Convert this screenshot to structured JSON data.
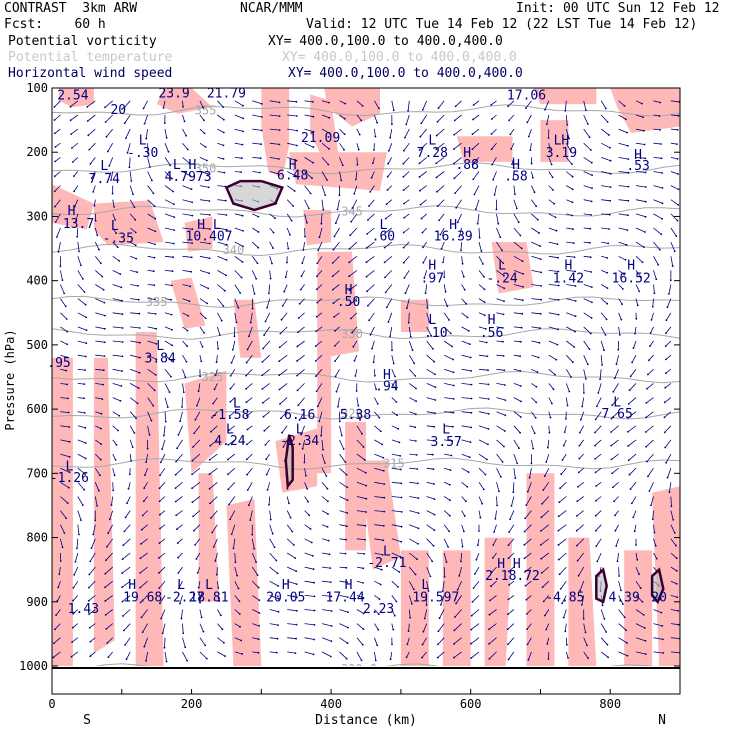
{
  "header": {
    "model": "CONTRAST  3km ARW",
    "org": "NCAR/MMM",
    "init": "Init: 00 UTC Sun 12 Feb 12",
    "fcst": "Fcst:    60 h",
    "valid": "Valid: 12 UTC Tue 14 Feb 12 (22 LST Tue 14 Feb 12)",
    "fields": [
      {
        "name": "Potential vorticity",
        "xy": "XY= 400.0,100.0 to 400.0,400.0",
        "color": "#000000"
      },
      {
        "name": "Potential temperature",
        "xy": "XY= 400.0,100.0 to 400.0,400.0",
        "color": "#c8c8c8"
      },
      {
        "name": "Horizontal wind speed",
        "xy": "XY= 400.0,100.0 to 400.0,400.0",
        "color": "#000060"
      }
    ]
  },
  "colors": {
    "pv_fill": "#ffb8b8",
    "pv_high": "#3a0030",
    "theta": "#a8a8a8",
    "wind_label": "#000080",
    "wind_vector": "#000080",
    "axis": "#000000"
  },
  "chart_data": {
    "type": "cross-section",
    "xlabel": "Distance (km)",
    "ylabel": "Pressure (hPa)",
    "xlim": [
      0,
      900
    ],
    "ylim": [
      1000,
      100
    ],
    "x_ticks": [
      0,
      200,
      400,
      600,
      800
    ],
    "y_ticks": [
      100,
      200,
      300,
      400,
      500,
      600,
      700,
      800,
      900,
      1000
    ],
    "x_end_labels": {
      "left": "S",
      "right": "N"
    },
    "theta_contours": [
      {
        "label": "355",
        "x": 220,
        "p": 135
      },
      {
        "label": "350",
        "x": 220,
        "p": 225
      },
      {
        "label": "345",
        "x": 430,
        "p": 292
      },
      {
        "label": "340",
        "x": 260,
        "p": 352
      },
      {
        "label": "335",
        "x": 150,
        "p": 433
      },
      {
        "label": "330",
        "x": 430,
        "p": 483
      },
      {
        "label": "325",
        "x": 230,
        "p": 550
      },
      {
        "label": "320",
        "x": 430,
        "p": 607
      },
      {
        "label": "315",
        "x": 490,
        "p": 685
      },
      {
        "label": "300.0",
        "x": 440,
        "p": 1005
      }
    ],
    "wind_labels": [
      {
        "text": "2.54",
        "x": 30,
        "p": 110
      },
      {
        "text": "20",
        "x": 95,
        "p": 133
      },
      {
        "text": "23.9",
        "x": 175,
        "p": 107
      },
      {
        "text": "21.79",
        "x": 250,
        "p": 107
      },
      {
        "text": "17.06",
        "x": 680,
        "p": 110
      },
      {
        "text": "21.09",
        "x": 385,
        "p": 176
      },
      {
        "text": "L",
        "x": 130,
        "p": 180
      },
      {
        "text": "-.30",
        "x": 130,
        "p": 200
      },
      {
        "text": "L",
        "x": 75,
        "p": 220
      },
      {
        "text": "7.74",
        "x": 75,
        "p": 240
      },
      {
        "text": "L H",
        "x": 190,
        "p": 218
      },
      {
        "text": "4.7973",
        "x": 195,
        "p": 237
      },
      {
        "text": "H",
        "x": 345,
        "p": 218
      },
      {
        "text": "6.48",
        "x": 345,
        "p": 235
      },
      {
        "text": "L",
        "x": 545,
        "p": 180
      },
      {
        "text": "7.28",
        "x": 545,
        "p": 200
      },
      {
        "text": "H",
        "x": 595,
        "p": 200
      },
      {
        "text": ".88",
        "x": 595,
        "p": 218
      },
      {
        "text": "H",
        "x": 665,
        "p": 218
      },
      {
        "text": ".58",
        "x": 665,
        "p": 236
      },
      {
        "text": "LH",
        "x": 730,
        "p": 180
      },
      {
        "text": "3.19",
        "x": 730,
        "p": 200
      },
      {
        "text": "H",
        "x": 840,
        "p": 203
      },
      {
        "text": ".53",
        "x": 840,
        "p": 220
      },
      {
        "text": "H",
        "x": 28,
        "p": 290
      },
      {
        "text": "13.7",
        "x": 38,
        "p": 310
      },
      {
        "text": "L",
        "x": 90,
        "p": 313
      },
      {
        "text": "-.35",
        "x": 95,
        "p": 333
      },
      {
        "text": "H L",
        "x": 225,
        "p": 312
      },
      {
        "text": "10.407",
        "x": 225,
        "p": 330
      },
      {
        "text": "L",
        "x": 475,
        "p": 312
      },
      {
        "text": ".60",
        "x": 475,
        "p": 330
      },
      {
        "text": "H",
        "x": 575,
        "p": 312
      },
      {
        "text": "16.39",
        "x": 575,
        "p": 330
      },
      {
        "text": "H",
        "x": 545,
        "p": 375
      },
      {
        "text": ".97",
        "x": 545,
        "p": 395
      },
      {
        "text": "L",
        "x": 645,
        "p": 375
      },
      {
        "text": "-.24",
        "x": 645,
        "p": 395
      },
      {
        "text": "H",
        "x": 740,
        "p": 375
      },
      {
        "text": "1.42",
        "x": 740,
        "p": 395
      },
      {
        "text": "H",
        "x": 830,
        "p": 375
      },
      {
        "text": "16.52",
        "x": 830,
        "p": 395
      },
      {
        "text": "H",
        "x": 425,
        "p": 413
      },
      {
        "text": ".50",
        "x": 425,
        "p": 432
      },
      {
        "text": "L",
        "x": 545,
        "p": 460
      },
      {
        "text": ".10",
        "x": 550,
        "p": 480
      },
      {
        "text": "H",
        "x": 630,
        "p": 460
      },
      {
        "text": ".56",
        "x": 630,
        "p": 480
      },
      {
        "text": ".95",
        "x": 10,
        "p": 527
      },
      {
        "text": "L",
        "x": 155,
        "p": 500
      },
      {
        "text": "3.84",
        "x": 155,
        "p": 520
      },
      {
        "text": "H",
        "x": 480,
        "p": 545
      },
      {
        "text": ".94",
        "x": 480,
        "p": 563
      },
      {
        "text": "L",
        "x": 265,
        "p": 590
      },
      {
        "text": "-1.58",
        "x": 255,
        "p": 608
      },
      {
        "text": "6.16",
        "x": 355,
        "p": 608
      },
      {
        "text": "5.38",
        "x": 435,
        "p": 608
      },
      {
        "text": "L",
        "x": 810,
        "p": 588
      },
      {
        "text": "7.65",
        "x": 810,
        "p": 606
      },
      {
        "text": "L",
        "x": 255,
        "p": 630
      },
      {
        "text": "4.24",
        "x": 255,
        "p": 648
      },
      {
        "text": "L",
        "x": 355,
        "p": 630
      },
      {
        "text": "-2.34",
        "x": 355,
        "p": 648
      },
      {
        "text": "L",
        "x": 565,
        "p": 630
      },
      {
        "text": "3.57",
        "x": 565,
        "p": 650
      },
      {
        "text": "L",
        "x": 25,
        "p": 688
      },
      {
        "text": "-1.26",
        "x": 25,
        "p": 706
      },
      {
        "text": "L",
        "x": 480,
        "p": 820
      },
      {
        "text": "-2.71",
        "x": 480,
        "p": 838
      },
      {
        "text": "H H",
        "x": 655,
        "p": 840
      },
      {
        "text": "2.18.72",
        "x": 660,
        "p": 858
      },
      {
        "text": "H",
        "x": 115,
        "p": 872
      },
      {
        "text": "19.68",
        "x": 130,
        "p": 892
      },
      {
        "text": "L",
        "x": 185,
        "p": 872
      },
      {
        "text": "-2.27",
        "x": 190,
        "p": 892
      },
      {
        "text": "L",
        "x": 225,
        "p": 872
      },
      {
        "text": "18.81",
        "x": 225,
        "p": 892
      },
      {
        "text": "H",
        "x": 335,
        "p": 872
      },
      {
        "text": "20.05",
        "x": 335,
        "p": 892
      },
      {
        "text": "H",
        "x": 425,
        "p": 872
      },
      {
        "text": "17.44",
        "x": 420,
        "p": 892
      },
      {
        "text": "L",
        "x": 535,
        "p": 872
      },
      {
        "text": "19.597",
        "x": 550,
        "p": 892
      },
      {
        "text": "-4.85",
        "x": 735,
        "p": 892
      },
      {
        "text": "4.39",
        "x": 820,
        "p": 892
      },
      {
        "text": "1.43",
        "x": 45,
        "p": 910
      },
      {
        "text": "2.23",
        "x": 468,
        "p": 910
      },
      {
        "text": "20",
        "x": 870,
        "p": 892
      }
    ],
    "pv_regions": [
      [
        [
          10,
          100
        ],
        [
          60,
          100
        ],
        [
          60,
          125
        ],
        [
          30,
          130
        ],
        [
          10,
          120
        ]
      ],
      [
        [
          160,
          100
        ],
        [
          200,
          100
        ],
        [
          230,
          130
        ],
        [
          180,
          140
        ],
        [
          150,
          125
        ]
      ],
      [
        [
          300,
          100
        ],
        [
          340,
          100
        ],
        [
          340,
          190
        ],
        [
          330,
          240
        ],
        [
          310,
          230
        ],
        [
          300,
          160
        ]
      ],
      [
        [
          370,
          110
        ],
        [
          400,
          120
        ],
        [
          410,
          200
        ],
        [
          390,
          215
        ],
        [
          370,
          170
        ]
      ],
      [
        [
          390,
          100
        ],
        [
          470,
          100
        ],
        [
          470,
          140
        ],
        [
          430,
          160
        ],
        [
          395,
          130
        ]
      ],
      [
        [
          690,
          100
        ],
        [
          780,
          100
        ],
        [
          780,
          125
        ],
        [
          700,
          125
        ]
      ],
      [
        [
          800,
          100
        ],
        [
          900,
          100
        ],
        [
          900,
          160
        ],
        [
          830,
          170
        ],
        [
          810,
          130
        ]
      ],
      [
        [
          580,
          175
        ],
        [
          660,
          175
        ],
        [
          660,
          215
        ],
        [
          590,
          215
        ]
      ],
      [
        [
          700,
          150
        ],
        [
          740,
          150
        ],
        [
          740,
          215
        ],
        [
          700,
          215
        ]
      ],
      [
        [
          340,
          200
        ],
        [
          480,
          200
        ],
        [
          470,
          260
        ],
        [
          350,
          250
        ]
      ],
      [
        [
          0,
          250
        ],
        [
          60,
          280
        ],
        [
          50,
          320
        ],
        [
          0,
          310
        ]
      ],
      [
        [
          60,
          280
        ],
        [
          140,
          275
        ],
        [
          160,
          340
        ],
        [
          80,
          345
        ],
        [
          60,
          320
        ]
      ],
      [
        [
          190,
          310
        ],
        [
          230,
          300
        ],
        [
          230,
          350
        ],
        [
          195,
          355
        ]
      ],
      [
        [
          360,
          290
        ],
        [
          400,
          290
        ],
        [
          400,
          340
        ],
        [
          365,
          345
        ]
      ],
      [
        [
          630,
          340
        ],
        [
          680,
          340
        ],
        [
          690,
          410
        ],
        [
          640,
          420
        ]
      ],
      [
        [
          380,
          355
        ],
        [
          430,
          355
        ],
        [
          440,
          510
        ],
        [
          390,
          520
        ]
      ],
      [
        [
          170,
          400
        ],
        [
          200,
          395
        ],
        [
          220,
          470
        ],
        [
          190,
          475
        ]
      ],
      [
        [
          260,
          430
        ],
        [
          290,
          430
        ],
        [
          300,
          520
        ],
        [
          270,
          520
        ]
      ],
      [
        [
          500,
          430
        ],
        [
          540,
          430
        ],
        [
          540,
          480
        ],
        [
          500,
          480
        ]
      ],
      [
        [
          0,
          520
        ],
        [
          30,
          520
        ],
        [
          30,
          1000
        ],
        [
          0,
          1000
        ]
      ],
      [
        [
          60,
          520
        ],
        [
          80,
          520
        ],
        [
          90,
          960
        ],
        [
          60,
          980
        ]
      ],
      [
        [
          120,
          480
        ],
        [
          150,
          480
        ],
        [
          160,
          1000
        ],
        [
          120,
          1000
        ]
      ],
      [
        [
          190,
          560
        ],
        [
          250,
          540
        ],
        [
          250,
          650
        ],
        [
          220,
          680
        ],
        [
          200,
          700
        ]
      ],
      [
        [
          210,
          700
        ],
        [
          230,
          700
        ],
        [
          240,
          900
        ],
        [
          210,
          900
        ]
      ],
      [
        [
          250,
          750
        ],
        [
          290,
          740
        ],
        [
          300,
          1000
        ],
        [
          260,
          1000
        ]
      ],
      [
        [
          320,
          650
        ],
        [
          380,
          630
        ],
        [
          380,
          720
        ],
        [
          330,
          730
        ]
      ],
      [
        [
          380,
          380
        ],
        [
          400,
          380
        ],
        [
          400,
          700
        ],
        [
          380,
          700
        ]
      ],
      [
        [
          420,
          620
        ],
        [
          450,
          620
        ],
        [
          450,
          820
        ],
        [
          420,
          820
        ]
      ],
      [
        [
          440,
          680
        ],
        [
          480,
          680
        ],
        [
          500,
          830
        ],
        [
          460,
          850
        ]
      ],
      [
        [
          500,
          820
        ],
        [
          540,
          820
        ],
        [
          540,
          1000
        ],
        [
          500,
          1000
        ]
      ],
      [
        [
          560,
          820
        ],
        [
          600,
          820
        ],
        [
          600,
          1000
        ],
        [
          560,
          1000
        ]
      ],
      [
        [
          620,
          800
        ],
        [
          660,
          800
        ],
        [
          650,
          1000
        ],
        [
          620,
          1000
        ]
      ],
      [
        [
          680,
          700
        ],
        [
          720,
          700
        ],
        [
          720,
          1000
        ],
        [
          680,
          1000
        ]
      ],
      [
        [
          740,
          800
        ],
        [
          770,
          800
        ],
        [
          780,
          1000
        ],
        [
          740,
          1000
        ]
      ],
      [
        [
          820,
          820
        ],
        [
          860,
          820
        ],
        [
          860,
          1000
        ],
        [
          820,
          1000
        ]
      ],
      [
        [
          860,
          730
        ],
        [
          900,
          720
        ],
        [
          900,
          1000
        ],
        [
          870,
          1000
        ]
      ]
    ],
    "pv_high_contours": [
      [
        [
          250,
          255
        ],
        [
          270,
          245
        ],
        [
          300,
          245
        ],
        [
          330,
          255
        ],
        [
          320,
          280
        ],
        [
          290,
          290
        ],
        [
          260,
          280
        ]
      ],
      [
        [
          335,
          680
        ],
        [
          340,
          640
        ],
        [
          345,
          660
        ],
        [
          345,
          710
        ],
        [
          338,
          720
        ]
      ],
      [
        [
          860,
          860
        ],
        [
          870,
          850
        ],
        [
          876,
          880
        ],
        [
          868,
          900
        ],
        [
          860,
          890
        ]
      ],
      [
        [
          780,
          860
        ],
        [
          790,
          850
        ],
        [
          795,
          875
        ],
        [
          790,
          900
        ],
        [
          780,
          895
        ]
      ]
    ]
  }
}
